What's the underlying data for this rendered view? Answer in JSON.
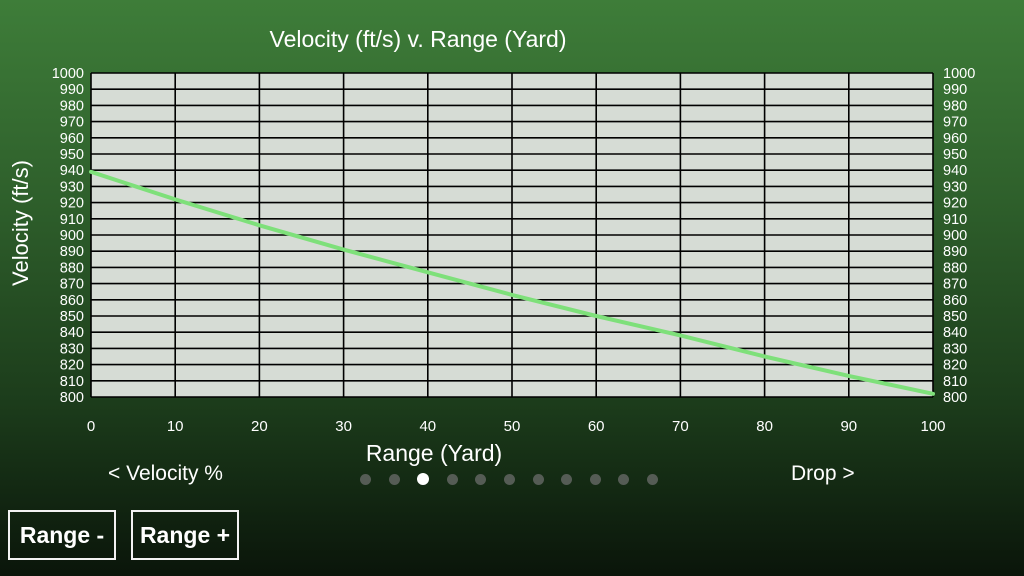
{
  "chart_data": {
    "type": "line",
    "title": "Velocity (ft/s) v. Range (Yard)",
    "xlabel": "Range (Yard)",
    "ylabel": "Velocity (ft/s)",
    "xlim": [
      0,
      100
    ],
    "ylim": [
      800,
      1000
    ],
    "x_ticks": [
      0,
      10,
      20,
      30,
      40,
      50,
      60,
      70,
      80,
      90,
      100
    ],
    "y_ticks": [
      800,
      810,
      820,
      830,
      840,
      850,
      860,
      870,
      880,
      890,
      900,
      910,
      920,
      930,
      940,
      950,
      960,
      970,
      980,
      990,
      1000
    ],
    "grid": true,
    "right_axis_labels": true,
    "line_color": "#7ee07a",
    "plot_background": "#d6dcd5",
    "series": [
      {
        "x": [
          0,
          10,
          20,
          30,
          40,
          50,
          60,
          70,
          80,
          90,
          100
        ],
        "values": [
          939,
          922,
          906,
          891,
          877,
          863,
          850,
          838,
          825,
          813,
          802
        ]
      }
    ]
  },
  "navigation": {
    "prev_label": "< Velocity %",
    "next_label": "Drop >",
    "page_count": 11,
    "active_page": 3
  },
  "buttons": {
    "range_minus": "Range -",
    "range_plus": "Range +"
  }
}
